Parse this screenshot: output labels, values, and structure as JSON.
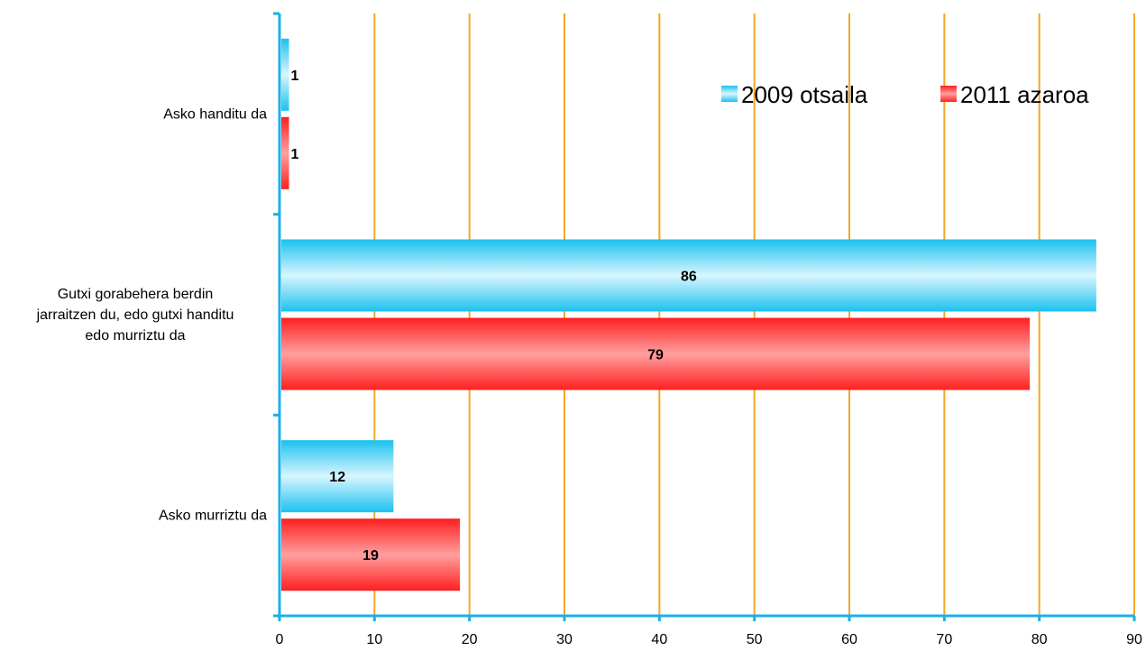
{
  "chart_data": {
    "type": "bar",
    "orientation": "horizontal",
    "categories": [
      "Asko handitu da",
      "Gutxi gorabehera berdin jarraitzen du, edo gutxi handitu edo murriztu da",
      "Asko murriztu da"
    ],
    "category_label_lines": [
      [
        "Asko handitu da"
      ],
      [
        "Gutxi gorabehera berdin",
        "jarraitzen du, edo gutxi handitu",
        "edo murriztu da"
      ],
      [
        "Asko murriztu da"
      ]
    ],
    "series": [
      {
        "name": "2009 otsaila",
        "values": [
          1,
          86,
          12
        ],
        "color": "#33ccf5"
      },
      {
        "name": "2011 azaroa",
        "values": [
          1,
          79,
          19
        ],
        "color": "#ff2a2a"
      }
    ],
    "xlim": [
      0,
      90
    ],
    "xticks": [
      0,
      10,
      20,
      30,
      40,
      50,
      60,
      70,
      80,
      90
    ],
    "grid": "vertical",
    "grid_color": "#f5a623",
    "axis_color": "#1ab0e8",
    "legend_position": "top-right",
    "title": "",
    "xlabel": "",
    "ylabel": ""
  }
}
